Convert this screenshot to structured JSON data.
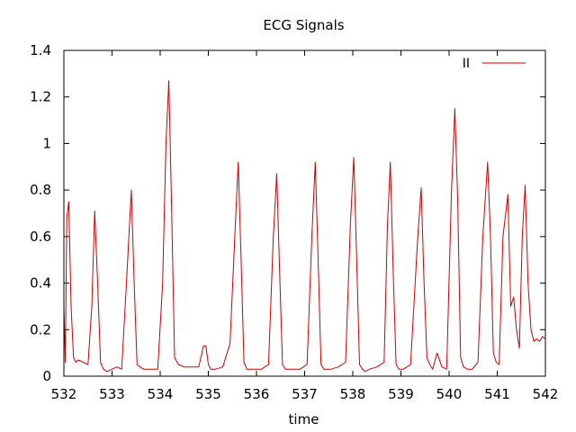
{
  "chart_data": {
    "type": "line",
    "title": "ECG Signals",
    "xlabel": "time",
    "ylabel": "",
    "xlim": [
      532,
      542
    ],
    "ylim": [
      0,
      1.4
    ],
    "x_ticks": [
      532,
      533,
      534,
      535,
      536,
      537,
      538,
      539,
      540,
      541,
      542
    ],
    "y_ticks": [
      0,
      0.2,
      0.4,
      0.6,
      0.8,
      1,
      1.2,
      1.4
    ],
    "x_tick_labels": [
      "532",
      "533",
      "534",
      "535",
      "536",
      "537",
      "538",
      "539",
      "540",
      "541",
      "542"
    ],
    "y_tick_labels": [
      "0",
      "0.2",
      "0.4",
      "0.6",
      "0.8",
      "1",
      "1.2",
      "1.4"
    ],
    "grid": false,
    "legend_position": "top-right",
    "series": [
      {
        "name": "II",
        "color": "#cc0000",
        "x": [
          532.0,
          532.03,
          532.06,
          532.1,
          532.15,
          532.2,
          532.25,
          532.3,
          532.4,
          532.5,
          532.58,
          532.64,
          532.7,
          532.76,
          532.82,
          532.9,
          533.0,
          533.1,
          533.2,
          533.3,
          533.4,
          533.46,
          533.52,
          533.58,
          533.66,
          533.75,
          533.85,
          533.95,
          534.05,
          534.12,
          534.18,
          534.24,
          534.3,
          534.38,
          534.5,
          534.6,
          534.7,
          534.8,
          534.9,
          534.95,
          535.0,
          535.05,
          535.15,
          535.3,
          535.45,
          535.55,
          535.62,
          535.68,
          535.74,
          535.8,
          535.86,
          535.95,
          536.1,
          536.25,
          536.35,
          536.42,
          536.48,
          536.54,
          536.6,
          536.66,
          536.75,
          536.9,
          537.05,
          537.15,
          537.22,
          537.28,
          537.34,
          537.4,
          537.46,
          537.55,
          537.7,
          537.85,
          537.95,
          538.02,
          538.08,
          538.14,
          538.2,
          538.26,
          538.35,
          538.5,
          538.65,
          538.72,
          538.78,
          538.84,
          538.9,
          538.96,
          539.05,
          539.2,
          539.35,
          539.42,
          539.48,
          539.54,
          539.6,
          539.66,
          539.75,
          539.85,
          539.95,
          540.05,
          540.12,
          540.18,
          540.24,
          540.3,
          540.38,
          540.48,
          540.6,
          540.7,
          540.8,
          540.86,
          540.92,
          540.98,
          541.04,
          541.12,
          541.22,
          541.28,
          541.34,
          541.4,
          541.46,
          541.52,
          541.58,
          541.64,
          541.7,
          541.76,
          541.82,
          541.88,
          541.94,
          542.0
        ],
        "y": [
          0.3,
          0.06,
          0.68,
          0.75,
          0.3,
          0.08,
          0.06,
          0.07,
          0.06,
          0.05,
          0.3,
          0.71,
          0.4,
          0.06,
          0.03,
          0.02,
          0.03,
          0.04,
          0.03,
          0.4,
          0.8,
          0.4,
          0.05,
          0.04,
          0.03,
          0.03,
          0.03,
          0.03,
          0.4,
          1.0,
          1.27,
          0.7,
          0.08,
          0.05,
          0.04,
          0.04,
          0.04,
          0.04,
          0.13,
          0.13,
          0.05,
          0.03,
          0.03,
          0.04,
          0.14,
          0.6,
          0.92,
          0.5,
          0.06,
          0.03,
          0.03,
          0.03,
          0.03,
          0.05,
          0.6,
          0.87,
          0.45,
          0.05,
          0.03,
          0.03,
          0.03,
          0.03,
          0.05,
          0.6,
          0.92,
          0.5,
          0.05,
          0.03,
          0.03,
          0.03,
          0.04,
          0.06,
          0.65,
          0.94,
          0.5,
          0.05,
          0.03,
          0.02,
          0.03,
          0.04,
          0.06,
          0.65,
          0.92,
          0.45,
          0.05,
          0.03,
          0.03,
          0.05,
          0.6,
          0.81,
          0.4,
          0.08,
          0.05,
          0.03,
          0.1,
          0.04,
          0.03,
          0.8,
          1.15,
          0.75,
          0.08,
          0.04,
          0.03,
          0.03,
          0.06,
          0.6,
          0.92,
          0.6,
          0.1,
          0.06,
          0.05,
          0.6,
          0.78,
          0.3,
          0.34,
          0.2,
          0.12,
          0.6,
          0.82,
          0.4,
          0.2,
          0.15,
          0.16,
          0.15,
          0.17,
          0.16
        ]
      }
    ]
  }
}
